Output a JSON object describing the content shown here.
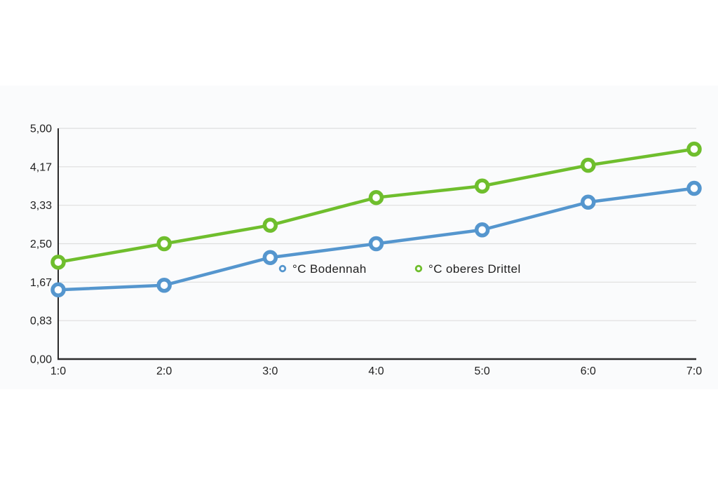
{
  "page": {
    "background": "#ffffff",
    "band_background": "#fafbfc"
  },
  "chart_data": {
    "type": "line",
    "title": "",
    "x_labels": [
      "1:0",
      "2:0",
      "3:0",
      "4:0",
      "5:0",
      "6:0",
      "7:0"
    ],
    "y_tick_labels": [
      "0,00",
      "0,83",
      "1,67",
      "2,50",
      "3,33",
      "4,17",
      "5,00"
    ],
    "y_tick_values": [
      0,
      0.8333,
      1.6667,
      2.5,
      3.3333,
      4.1667,
      5
    ],
    "ylim": [
      0,
      5
    ],
    "grid": true,
    "legend_position": "inside-middle",
    "series": [
      {
        "name": "°C Bodennah",
        "color": "#5596CE",
        "values": [
          1.5,
          1.6,
          2.2,
          2.5,
          2.8,
          3.4,
          3.7
        ]
      },
      {
        "name": "°C oberes Drittel",
        "color": "#6FBE2D",
        "values": [
          2.1,
          2.5,
          2.9,
          3.5,
          3.75,
          4.2,
          4.55
        ]
      }
    ],
    "colors": {
      "axis": "#2b2b2b",
      "grid": "#dedede",
      "text": "#1f1f1f",
      "marker_fill": "#ffffff"
    }
  }
}
